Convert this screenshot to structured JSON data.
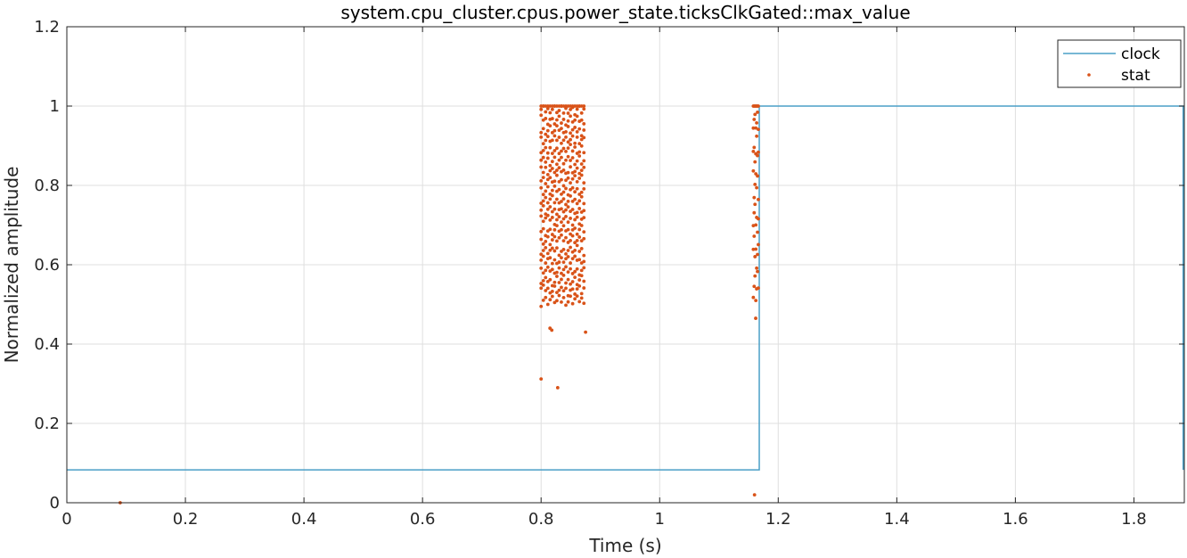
{
  "chart_data": {
    "type": "line",
    "title": "system.cpu_cluster.cpus.power_state.ticksClkGated::max_value",
    "xlabel": "Time (s)",
    "ylabel": "Normalized amplitude",
    "xlim": [
      0,
      1.885
    ],
    "ylim": [
      0,
      1.2
    ],
    "xticks": [
      0,
      0.2,
      0.4,
      0.6,
      0.8,
      1,
      1.2,
      1.4,
      1.6,
      1.8
    ],
    "xtick_labels": [
      "0",
      "0.2",
      "0.4",
      "0.6",
      "0.8",
      "1",
      "1.2",
      "1.4",
      "1.6",
      "1.8"
    ],
    "yticks": [
      0,
      0.2,
      0.4,
      0.6,
      0.8,
      1,
      1.2
    ],
    "ytick_labels": [
      "0",
      "0.2",
      "0.4",
      "0.6",
      "0.8",
      "1",
      "1.2"
    ],
    "grid": true,
    "legend_position": "top-right",
    "series": [
      {
        "name": "clock",
        "kind": "line",
        "color": "#4a9fc7",
        "x": [
          0,
          1.168,
          1.168,
          1.883,
          1.883
        ],
        "y": [
          0.083,
          0.083,
          1.0,
          1.0,
          0.083
        ]
      },
      {
        "name": "stat",
        "kind": "scatter",
        "color": "#d95319",
        "clusters": [
          {
            "x_start": 0.8,
            "x_end": 0.875,
            "x_step": 0.0038,
            "y_low": 0.495,
            "y_high": 1.0
          },
          {
            "x_start": 1.158,
            "x_end": 1.167,
            "x_step": 0.0014,
            "y_low": 0.5,
            "y_high": 1.0
          }
        ],
        "x": [
          0.09,
          0.8,
          0.815,
          0.818,
          0.828,
          0.875,
          1.162,
          1.16
        ],
        "y": [
          0.0,
          0.312,
          0.44,
          0.435,
          0.29,
          0.43,
          0.465,
          0.02
        ]
      }
    ]
  }
}
